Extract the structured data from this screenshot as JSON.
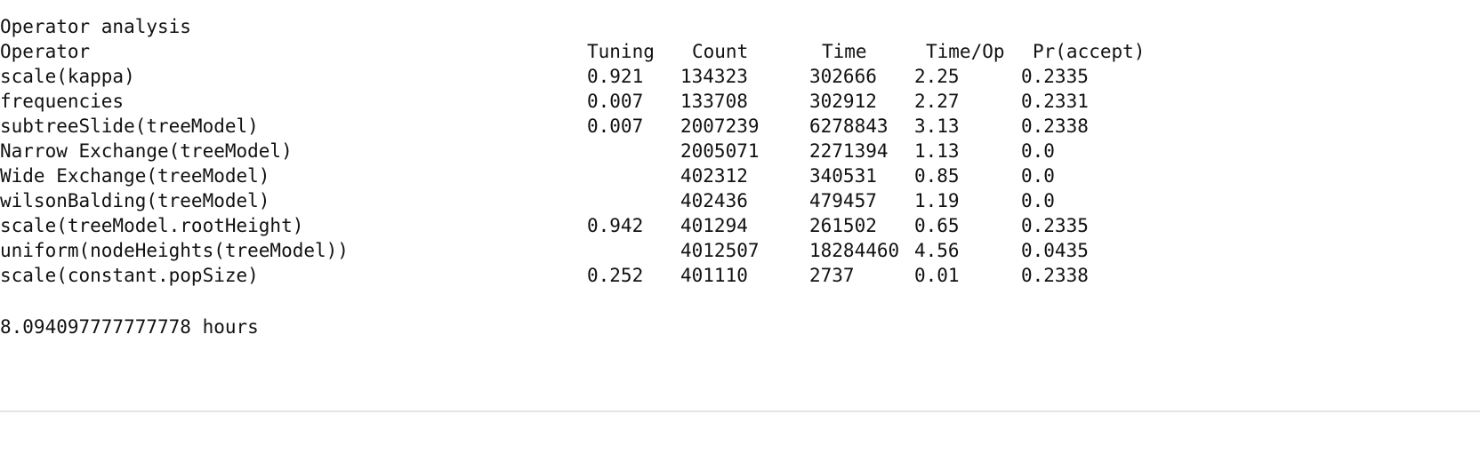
{
  "title": "Operator analysis",
  "headers": {
    "operator": "Operator",
    "tuning": "Tuning",
    "count": "Count",
    "time": "Time",
    "time_per_op": "Time/Op",
    "pr_accept": "Pr(accept)"
  },
  "rows": [
    {
      "operator": "scale(kappa)",
      "tuning": "0.921",
      "count": "134323",
      "time": "302666",
      "time_per_op": "2.25",
      "pr_accept": "0.2335"
    },
    {
      "operator": "frequencies",
      "tuning": "0.007",
      "count": "133708",
      "time": "302912",
      "time_per_op": "2.27",
      "pr_accept": "0.2331"
    },
    {
      "operator": "subtreeSlide(treeModel)",
      "tuning": "0.007",
      "count": "2007239",
      "time": "6278843",
      "time_per_op": "3.13",
      "pr_accept": "0.2338"
    },
    {
      "operator": "Narrow Exchange(treeModel)",
      "tuning": "",
      "count": "2005071",
      "time": "2271394",
      "time_per_op": "1.13",
      "pr_accept": "0.0"
    },
    {
      "operator": "Wide Exchange(treeModel)",
      "tuning": "",
      "count": "402312",
      "time": "340531",
      "time_per_op": "0.85",
      "pr_accept": "0.0"
    },
    {
      "operator": "wilsonBalding(treeModel)",
      "tuning": "",
      "count": "402436",
      "time": "479457",
      "time_per_op": "1.19",
      "pr_accept": "0.0"
    },
    {
      "operator": "scale(treeModel.rootHeight)",
      "tuning": "0.942",
      "count": "401294",
      "time": "261502",
      "time_per_op": "0.65",
      "pr_accept": "0.2335"
    },
    {
      "operator": "uniform(nodeHeights(treeModel))",
      "tuning": "",
      "count": "4012507",
      "time": "18284460",
      "time_per_op": "4.56",
      "pr_accept": "0.0435"
    },
    {
      "operator": "scale(constant.popSize)",
      "tuning": "0.252",
      "count": "401110",
      "time": "2737",
      "time_per_op": "0.01",
      "pr_accept": "0.2338"
    }
  ],
  "footer": "8.094097777777778 hours"
}
